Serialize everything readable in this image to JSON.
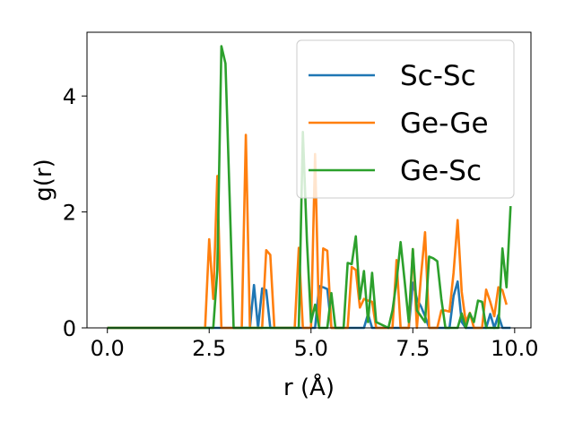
{
  "chart_data": {
    "type": "line",
    "title": "",
    "xlabel": "r (Å)",
    "ylabel": "g(r)",
    "xlim": [
      -0.5,
      10.4
    ],
    "ylim": [
      0,
      5.1
    ],
    "xticks": [
      0.0,
      2.5,
      5.0,
      7.5,
      10.0
    ],
    "xtick_labels": [
      "0.0",
      "2.5",
      "5.0",
      "7.5",
      "10.0"
    ],
    "yticks": [
      0,
      2,
      4
    ],
    "ytick_labels": [
      "0",
      "2",
      "4"
    ],
    "grid": false,
    "legend_position": "top-right",
    "series": [
      {
        "name": "Sc-Sc",
        "color": "#1f77b4",
        "points": [
          [
            0,
            0
          ],
          [
            3.5,
            0
          ],
          [
            3.6,
            0.74
          ],
          [
            3.7,
            0
          ],
          [
            3.8,
            0.68
          ],
          [
            3.9,
            0.65
          ],
          [
            4.0,
            0
          ],
          [
            5.1,
            0
          ],
          [
            5.2,
            0.72
          ],
          [
            5.3,
            0.7
          ],
          [
            5.4,
            0.67
          ],
          [
            5.5,
            0
          ],
          [
            6.3,
            0
          ],
          [
            6.4,
            0.24
          ],
          [
            6.5,
            0
          ],
          [
            7.4,
            0
          ],
          [
            7.5,
            0.78
          ],
          [
            7.6,
            0.5
          ],
          [
            7.7,
            0.37
          ],
          [
            7.8,
            0.2
          ],
          [
            7.9,
            0
          ],
          [
            8.4,
            0
          ],
          [
            8.5,
            0.55
          ],
          [
            8.6,
            0.8
          ],
          [
            8.7,
            0.1
          ],
          [
            8.8,
            0
          ],
          [
            9.3,
            0
          ],
          [
            9.4,
            0.24
          ],
          [
            9.5,
            0
          ],
          [
            9.6,
            0.22
          ],
          [
            9.7,
            0
          ],
          [
            9.9,
            0
          ]
        ]
      },
      {
        "name": "Ge-Ge",
        "color": "#ff7f0e",
        "points": [
          [
            0,
            0
          ],
          [
            2.4,
            0
          ],
          [
            2.5,
            1.53
          ],
          [
            2.6,
            0.5
          ],
          [
            2.7,
            2.62
          ],
          [
            2.8,
            0
          ],
          [
            3.3,
            0
          ],
          [
            3.4,
            3.33
          ],
          [
            3.5,
            0
          ],
          [
            3.8,
            0
          ],
          [
            3.9,
            1.34
          ],
          [
            4.0,
            1.26
          ],
          [
            4.1,
            0
          ],
          [
            4.6,
            0
          ],
          [
            4.7,
            1.38
          ],
          [
            4.8,
            0
          ],
          [
            5.0,
            0
          ],
          [
            5.1,
            3.0
          ],
          [
            5.2,
            0
          ],
          [
            5.3,
            1.37
          ],
          [
            5.4,
            1.33
          ],
          [
            5.5,
            0
          ],
          [
            5.9,
            0
          ],
          [
            6.0,
            1.05
          ],
          [
            6.1,
            1.0
          ],
          [
            6.2,
            0.35
          ],
          [
            6.3,
            0.5
          ],
          [
            6.4,
            0.47
          ],
          [
            6.5,
            0.45
          ],
          [
            6.6,
            0
          ],
          [
            7.0,
            0
          ],
          [
            7.1,
            1.17
          ],
          [
            7.2,
            0
          ],
          [
            7.4,
            0
          ],
          [
            7.5,
            1.36
          ],
          [
            7.6,
            0
          ],
          [
            7.7,
            0.89
          ],
          [
            7.8,
            1.65
          ],
          [
            7.9,
            0
          ],
          [
            8.1,
            0
          ],
          [
            8.2,
            0.3
          ],
          [
            8.3,
            0.3
          ],
          [
            8.4,
            0.28
          ],
          [
            8.5,
            0.95
          ],
          [
            8.6,
            1.86
          ],
          [
            8.7,
            0.62
          ],
          [
            8.8,
            0.1
          ],
          [
            8.9,
            0.26
          ],
          [
            9.0,
            0
          ],
          [
            9.2,
            0
          ],
          [
            9.3,
            0.66
          ],
          [
            9.4,
            0.45
          ],
          [
            9.5,
            0.2
          ],
          [
            9.6,
            0.7
          ],
          [
            9.7,
            0.65
          ],
          [
            9.8,
            0.4
          ]
        ]
      },
      {
        "name": "Ge-Sc",
        "color": "#2ca02c",
        "points": [
          [
            0,
            0
          ],
          [
            2.6,
            0
          ],
          [
            2.7,
            1.0
          ],
          [
            2.8,
            4.86
          ],
          [
            2.9,
            4.56
          ],
          [
            3.0,
            2.3
          ],
          [
            3.1,
            0
          ],
          [
            4.7,
            0
          ],
          [
            4.8,
            3.38
          ],
          [
            4.9,
            1.5
          ],
          [
            5.0,
            0.1
          ],
          [
            5.1,
            0.4
          ],
          [
            5.2,
            0
          ],
          [
            5.4,
            0
          ],
          [
            5.5,
            0.6
          ],
          [
            5.6,
            0
          ],
          [
            5.8,
            0
          ],
          [
            5.9,
            1.12
          ],
          [
            6.0,
            1.1
          ],
          [
            6.1,
            1.58
          ],
          [
            6.2,
            0.5
          ],
          [
            6.3,
            0.98
          ],
          [
            6.4,
            0.1
          ],
          [
            6.5,
            0.95
          ],
          [
            6.6,
            0.1
          ],
          [
            6.9,
            0
          ],
          [
            7.0,
            0.3
          ],
          [
            7.1,
            0.8
          ],
          [
            7.2,
            1.48
          ],
          [
            7.3,
            0.8
          ],
          [
            7.4,
            0.1
          ],
          [
            7.5,
            1.36
          ],
          [
            7.6,
            0.3
          ],
          [
            7.7,
            0.2
          ],
          [
            7.8,
            0.1
          ],
          [
            7.9,
            1.23
          ],
          [
            8.0,
            1.2
          ],
          [
            8.1,
            1.15
          ],
          [
            8.2,
            0.5
          ],
          [
            8.3,
            0
          ],
          [
            8.6,
            0
          ],
          [
            8.7,
            0.25
          ],
          [
            8.8,
            0
          ],
          [
            8.9,
            0.25
          ],
          [
            9.0,
            0.1
          ],
          [
            9.1,
            0.47
          ],
          [
            9.2,
            0.45
          ],
          [
            9.3,
            0
          ],
          [
            9.6,
            0
          ],
          [
            9.7,
            1.37
          ],
          [
            9.8,
            0.7
          ],
          [
            9.9,
            2.1
          ]
        ]
      }
    ]
  }
}
